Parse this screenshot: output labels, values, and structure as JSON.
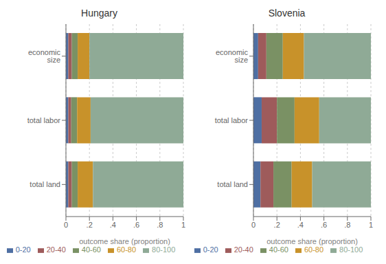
{
  "chart_data": [
    {
      "type": "bar",
      "title": "Hungary",
      "orientation": "horizontal",
      "stacked": true,
      "grid": true,
      "legend": "bottom",
      "categories": [
        "economic size",
        "total labor",
        "total land"
      ],
      "series": [
        {
          "name": "0-20",
          "color": "#4e6fa3",
          "values": [
            0.02,
            0.02,
            0.02
          ]
        },
        {
          "name": "20-40",
          "color": "#9e5b5b",
          "values": [
            0.03,
            0.025,
            0.03
          ]
        },
        {
          "name": "40-60",
          "color": "#7a9164",
          "values": [
            0.05,
            0.05,
            0.05
          ]
        },
        {
          "name": "60-80",
          "color": "#c8922a",
          "values": [
            0.1,
            0.115,
            0.13
          ]
        },
        {
          "name": "80-100",
          "color": "#8faa96",
          "values": [
            0.8,
            0.79,
            0.77
          ]
        }
      ],
      "xlabel": "outcome share (proportion)",
      "xlim": [
        0,
        1
      ],
      "xticks": [
        0,
        {
          "value": 0.2,
          "label": ".2"
        },
        {
          "value": 0.4,
          "label": ".4"
        },
        {
          "value": 0.6,
          "label": ".6"
        },
        {
          "value": 0.8,
          "label": ".8"
        },
        1
      ]
    },
    {
      "type": "bar",
      "title": "Slovenia",
      "orientation": "horizontal",
      "stacked": true,
      "grid": true,
      "legend": "bottom",
      "categories": [
        "economic size",
        "total labor",
        "total land"
      ],
      "series": [
        {
          "name": "0-20",
          "color": "#4e6fa3",
          "values": [
            0.04,
            0.07,
            0.06
          ]
        },
        {
          "name": "20-40",
          "color": "#9e5b5b",
          "values": [
            0.07,
            0.13,
            0.11
          ]
        },
        {
          "name": "40-60",
          "color": "#7a9164",
          "values": [
            0.14,
            0.15,
            0.155
          ]
        },
        {
          "name": "60-80",
          "color": "#c8922a",
          "values": [
            0.18,
            0.21,
            0.175
          ]
        },
        {
          "name": "80-100",
          "color": "#8faa96",
          "values": [
            0.57,
            0.44,
            0.5
          ]
        }
      ],
      "xlabel": "outcome share (proportion)",
      "xlim": [
        0,
        1
      ],
      "xticks": [
        0,
        {
          "value": 0.2,
          "label": ".2"
        },
        {
          "value": 0.4,
          "label": ".4"
        },
        {
          "value": 0.6,
          "label": ".6"
        },
        {
          "value": 0.8,
          "label": ".8"
        },
        1
      ]
    }
  ]
}
